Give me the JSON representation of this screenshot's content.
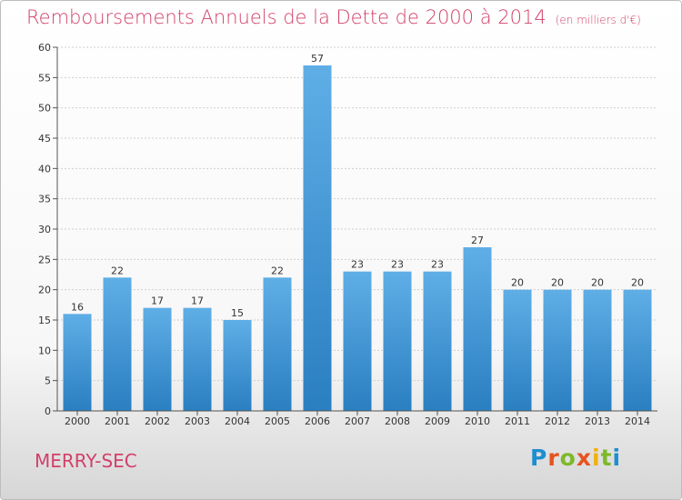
{
  "title": "Remboursements Annuels de la Dette de 2000 à 2014",
  "subtitle": "(en milliers d'€)",
  "commune": "MERRY-SEC",
  "logo": {
    "letters": [
      "P",
      "r",
      "o",
      "x",
      "i",
      "t",
      "i"
    ],
    "colors": [
      "#1d8fd1",
      "#e6531f",
      "#7db929",
      "#e6531f",
      "#f0b010",
      "#7db929",
      "#1d8fd1"
    ]
  },
  "colors": {
    "title": "#d2406a",
    "bar_top": "#5faee6",
    "bar_bottom": "#2a7fc1",
    "grid": "#cfcfcf"
  },
  "chart_data": {
    "type": "bar",
    "title": "Remboursements Annuels de la Dette de 2000 à 2014",
    "xlabel": "",
    "ylabel": "",
    "categories": [
      "2000",
      "2001",
      "2002",
      "2003",
      "2004",
      "2005",
      "2006",
      "2007",
      "2008",
      "2009",
      "2010",
      "2011",
      "2012",
      "2013",
      "2014"
    ],
    "values": [
      16,
      22,
      17,
      17,
      15,
      22,
      57,
      23,
      23,
      23,
      27,
      20,
      20,
      20,
      20
    ],
    "ylim": [
      0,
      60
    ],
    "yticks": [
      0,
      5,
      10,
      15,
      20,
      25,
      30,
      35,
      40,
      45,
      50,
      55,
      60
    ],
    "grid": true,
    "data_labels": true
  }
}
